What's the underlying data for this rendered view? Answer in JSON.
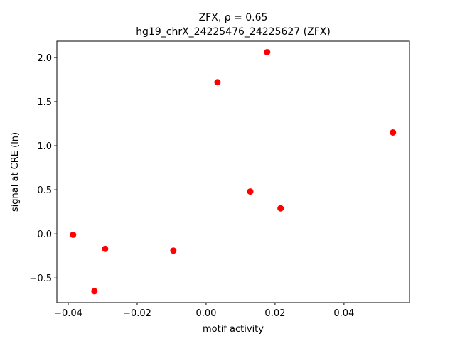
{
  "chart_data": {
    "type": "scatter",
    "title": [
      "ZFX, ρ = 0.65",
      "hg19_chrX_24225476_24225627 (ZFX)"
    ],
    "x_label": "motif activity",
    "y_label": "signal at CRE (ln)",
    "x": [
      -0.0386,
      -0.0293,
      -0.0324,
      -0.0095,
      0.0033,
      0.0128,
      0.0177,
      0.0216,
      0.0542
    ],
    "values": [
      -0.01,
      -0.17,
      -0.65,
      -0.19,
      1.72,
      0.48,
      2.06,
      0.29,
      1.15
    ],
    "color": "#ff0000",
    "xlim": [
      -0.0433,
      0.059
    ],
    "ylim": [
      -0.78,
      2.185
    ],
    "xticks": [
      {
        "value": -0.04,
        "label": "−0.04"
      },
      {
        "value": -0.02,
        "label": "−0.02"
      },
      {
        "value": 0,
        "label": "0.00"
      },
      0.02,
      0.04
    ],
    "yticks": [
      {
        "value": -0.5,
        "label": "−0.5"
      },
      {
        "value": 0,
        "label": "0.0"
      },
      0.5,
      {
        "value": 1,
        "label": "1.0"
      },
      1.5,
      {
        "value": 2,
        "label": "2.0"
      }
    ]
  }
}
